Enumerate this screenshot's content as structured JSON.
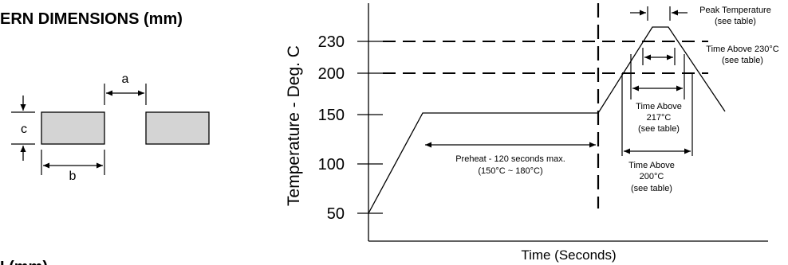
{
  "left_panel": {
    "heading": "ERN DIMENSIONS (mm)",
    "dim_a": "a",
    "dim_b": "b",
    "dim_c": "c",
    "bottom_heading_fragment": "I (mm)"
  },
  "chart": {
    "y_axis_label": "Temperature - Deg. C",
    "x_axis_label": "Time (Seconds)",
    "ticks": [
      "230",
      "200",
      "150",
      "100",
      "50"
    ],
    "annotations": {
      "peak_line1": "Peak Temperature",
      "peak_line2": "(see table)",
      "t230_line1": "Time Above 230°C",
      "t230_line2": "(see table)",
      "t217_line1": "Time Above",
      "t217_line2": "217°C",
      "t217_line3": "(see table)",
      "t200_line1": "Time Above",
      "t200_line2": "200°C",
      "t200_line3": "(see table)",
      "preheat_line1": "Preheat - 120 seconds max.",
      "preheat_line2": "(150°C ~ 180°C)"
    }
  },
  "colors": {
    "pad_fill": "#d4d4d4",
    "line": "#000000"
  }
}
